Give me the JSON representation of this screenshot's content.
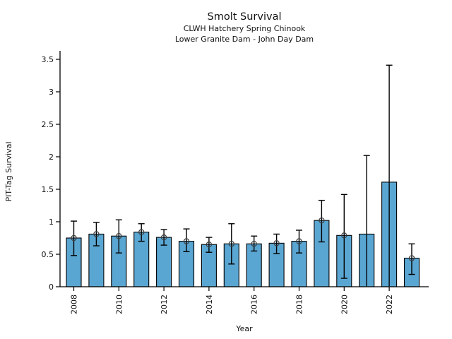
{
  "figure": {
    "background": "#ffffff"
  },
  "chart_data": {
    "type": "bar",
    "title": "Smolt Survival",
    "subtitle_line1": "CLWH Hatchery Spring Chinook",
    "subtitle_line2": "Lower Granite Dam - John Day Dam",
    "xlabel": "Year",
    "ylabel": "PIT-Tag Survival",
    "ylim": [
      0,
      3.63
    ],
    "yticks": [
      0,
      0.5,
      1,
      1.5,
      2,
      2.5,
      3,
      3.5
    ],
    "ytick_labels": [
      "0",
      "0.5",
      "1",
      "1.5",
      "2",
      "2.5",
      "3",
      "3.5"
    ],
    "xtick_labels": [
      "2008",
      "2010",
      "2012",
      "2014",
      "2016",
      "2018",
      "2020",
      "2022"
    ],
    "xtick_years": [
      2008,
      2010,
      2012,
      2014,
      2016,
      2018,
      2020,
      2022
    ],
    "grid": false,
    "legend": null,
    "bar_color": "#5AA6D2",
    "bar_edge_color": "#000000",
    "errorbar_color": "#000000",
    "marker_style": "open-circle",
    "marker_color": "#3d3d3d",
    "points": [
      {
        "year": 2008,
        "value": 0.75,
        "ci_low": 0.48,
        "ci_high": 1.01,
        "marker": true,
        "low_cap": true
      },
      {
        "year": 2009,
        "value": 0.81,
        "ci_low": 0.63,
        "ci_high": 0.99,
        "marker": true,
        "low_cap": true
      },
      {
        "year": 2010,
        "value": 0.78,
        "ci_low": 0.52,
        "ci_high": 1.03,
        "marker": true,
        "low_cap": true
      },
      {
        "year": 2011,
        "value": 0.84,
        "ci_low": 0.7,
        "ci_high": 0.97,
        "marker": true,
        "low_cap": true
      },
      {
        "year": 2012,
        "value": 0.76,
        "ci_low": 0.64,
        "ci_high": 0.88,
        "marker": true,
        "low_cap": true
      },
      {
        "year": 2013,
        "value": 0.7,
        "ci_low": 0.54,
        "ci_high": 0.89,
        "marker": true,
        "low_cap": true
      },
      {
        "year": 2014,
        "value": 0.65,
        "ci_low": 0.53,
        "ci_high": 0.76,
        "marker": true,
        "low_cap": true
      },
      {
        "year": 2015,
        "value": 0.66,
        "ci_low": 0.35,
        "ci_high": 0.97,
        "marker": true,
        "low_cap": true
      },
      {
        "year": 2016,
        "value": 0.66,
        "ci_low": 0.55,
        "ci_high": 0.78,
        "marker": true,
        "low_cap": true
      },
      {
        "year": 2017,
        "value": 0.67,
        "ci_low": 0.51,
        "ci_high": 0.81,
        "marker": true,
        "low_cap": true
      },
      {
        "year": 2018,
        "value": 0.7,
        "ci_low": 0.52,
        "ci_high": 0.87,
        "marker": true,
        "low_cap": true
      },
      {
        "year": 2019,
        "value": 1.02,
        "ci_low": 0.69,
        "ci_high": 1.33,
        "marker": true,
        "low_cap": true
      },
      {
        "year": 2020,
        "value": 0.79,
        "ci_low": 0.13,
        "ci_high": 1.42,
        "marker": true,
        "low_cap": true
      },
      {
        "year": 2021,
        "value": 0.81,
        "ci_low": 0.01,
        "ci_high": 2.02,
        "marker": false,
        "low_cap": false
      },
      {
        "year": 2022,
        "value": 1.61,
        "ci_low": 0.01,
        "ci_high": 3.41,
        "marker": false,
        "low_cap": false
      },
      {
        "year": 2023,
        "value": 0.44,
        "ci_low": 0.19,
        "ci_high": 0.66,
        "marker": true,
        "low_cap": true
      }
    ]
  }
}
